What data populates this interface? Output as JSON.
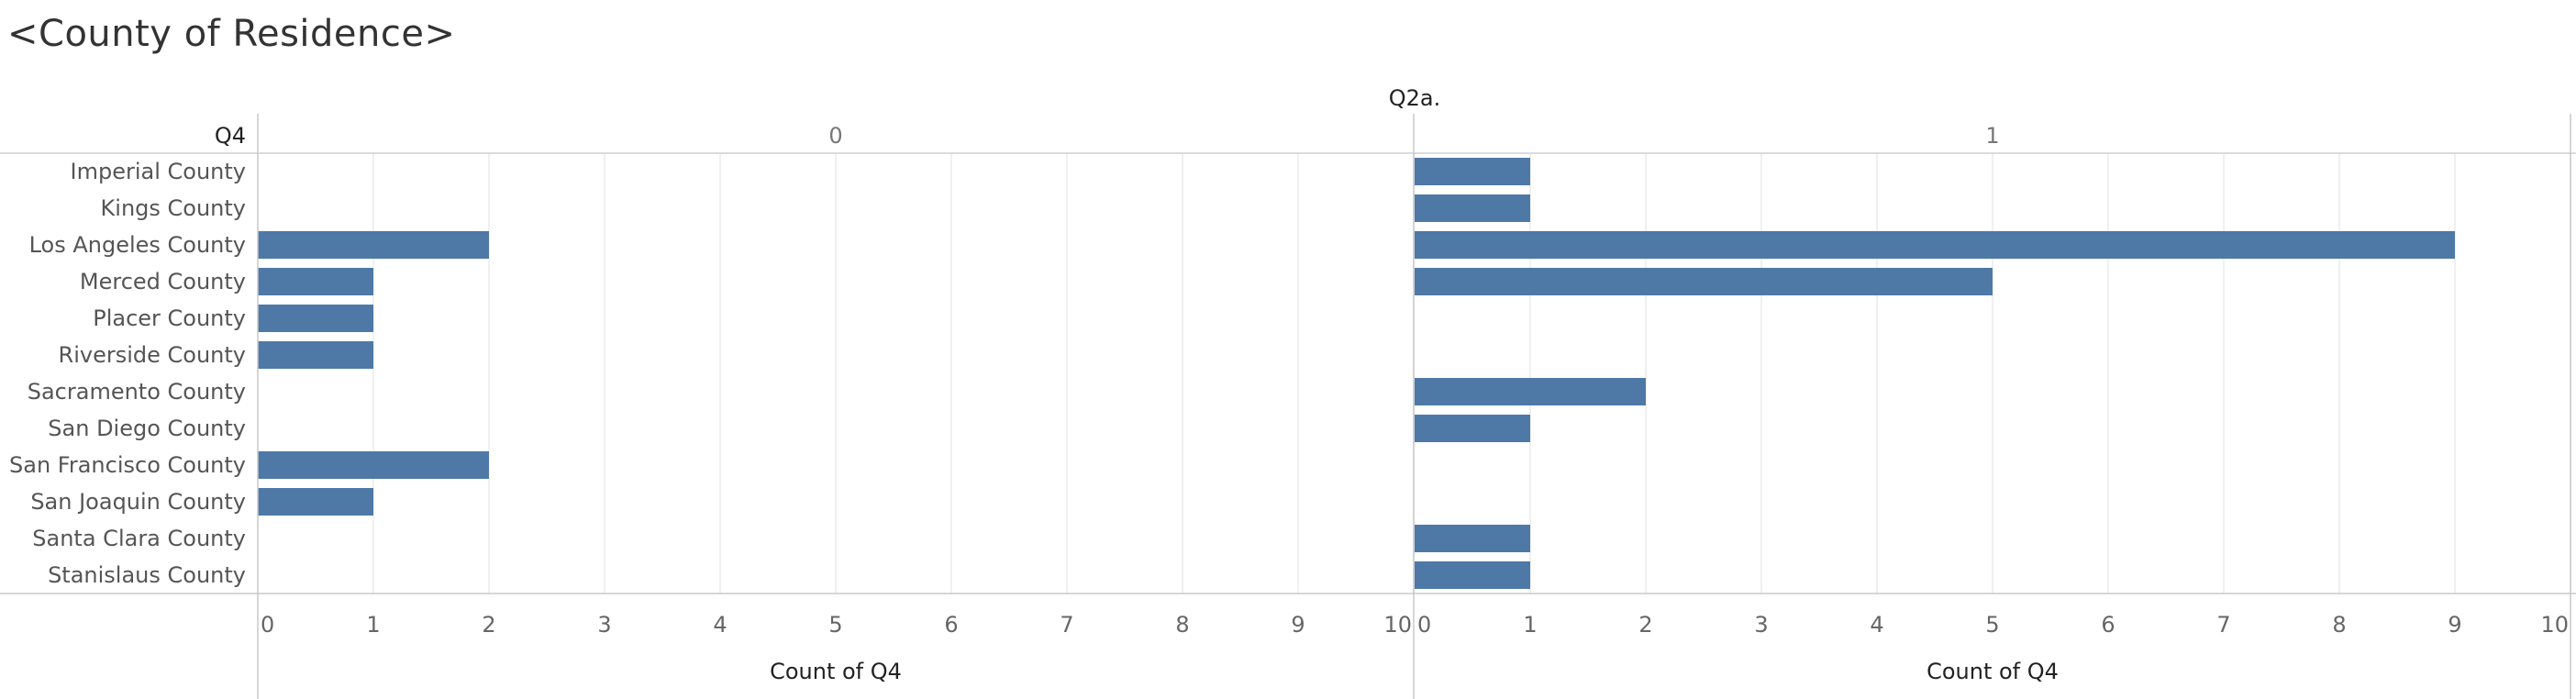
{
  "title": "<County of Residence>",
  "chart_data": {
    "type": "bar",
    "orientation": "horizontal",
    "column_field": "Q2a.",
    "row_field": "Q4",
    "categories": [
      "Imperial County",
      "Kings County",
      "Los Angeles County",
      "Merced County",
      "Placer County",
      "Riverside County",
      "Sacramento County",
      "San Diego County",
      "San Francisco County",
      "San Joaquin County",
      "Santa Clara County",
      "Stanislaus County"
    ],
    "panels": [
      {
        "header": "0",
        "xlabel": "Count of Q4",
        "xlim": [
          0,
          10
        ],
        "values": [
          null,
          null,
          2,
          1,
          1,
          1,
          null,
          null,
          2,
          1,
          null,
          null
        ]
      },
      {
        "header": "1",
        "xlabel": "Count of Q4",
        "xlim": [
          0,
          10
        ],
        "values": [
          1,
          1,
          9,
          5,
          null,
          null,
          2,
          1,
          null,
          null,
          1,
          1
        ]
      }
    ],
    "ticks": [
      "0",
      "1",
      "2",
      "3",
      "4",
      "5",
      "6",
      "7",
      "8",
      "9",
      "10"
    ],
    "bar_color": "#4e79a7",
    "grid": true
  }
}
